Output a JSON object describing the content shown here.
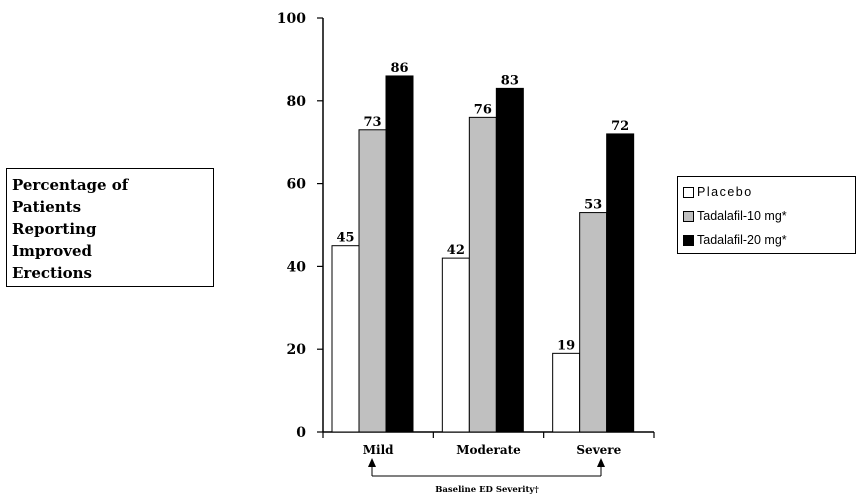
{
  "chart_data": {
    "type": "bar",
    "title": "",
    "ylabel": [
      "Percentage of",
      "Patients",
      "Reporting",
      "Improved",
      "Erections"
    ],
    "xlabel": "Baseline ED Severity†",
    "ylim": [
      0,
      100
    ],
    "yticks": [
      "0",
      "20",
      "40",
      "60",
      "80",
      "100"
    ],
    "categories": [
      "Mild",
      "Moderate",
      "Severe"
    ],
    "series": [
      {
        "name": "Placebo",
        "values": [
          45,
          42,
          19
        ],
        "color": "#ffffff"
      },
      {
        "name": "Tadalafil-10 mg*",
        "values": [
          73,
          76,
          53
        ],
        "color": "#c0c0c0"
      },
      {
        "name": "Tadalafil-20 mg*",
        "values": [
          86,
          83,
          72
        ],
        "color": "#000000"
      }
    ],
    "legend_position": "right",
    "grid": false
  }
}
